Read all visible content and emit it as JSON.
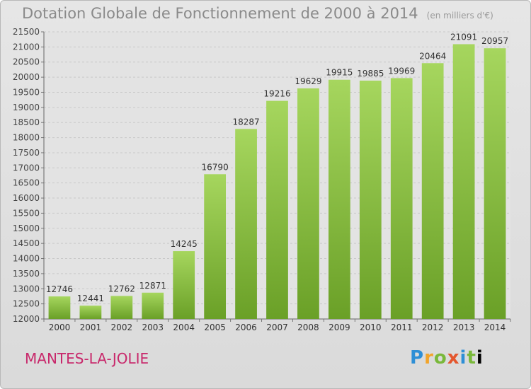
{
  "header": {
    "title": "Dotation Globale de Fonctionnement de 2000 à 2014",
    "subtitle": "(en milliers d'€)"
  },
  "footer": {
    "place": "MANTES-LA-JOLIE",
    "logo": "Proxiti"
  },
  "colors": {
    "bar_light": "#9fd058",
    "bar_dark": "#6ea42a",
    "place": "#c8286b"
  },
  "chart_data": {
    "type": "bar",
    "title": "Dotation Globale de Fonctionnement de 2000 à 2014",
    "subtitle": "(en milliers d'€)",
    "categories": [
      "2000",
      "2001",
      "2002",
      "2003",
      "2004",
      "2005",
      "2006",
      "2007",
      "2008",
      "2009",
      "2010",
      "2011",
      "2012",
      "2013",
      "2014"
    ],
    "values": [
      12746,
      12441,
      12762,
      12871,
      14245,
      16790,
      18287,
      19216,
      19629,
      19915,
      19885,
      19969,
      20464,
      21091,
      20957
    ],
    "ylim": [
      12000,
      21500
    ],
    "yticks": [
      12000,
      12500,
      13000,
      13500,
      14000,
      14500,
      15000,
      15500,
      16000,
      16500,
      17000,
      17500,
      18000,
      18500,
      19000,
      19500,
      20000,
      20500,
      21000,
      21500
    ],
    "grid": true,
    "xlabel": "",
    "ylabel": ""
  }
}
